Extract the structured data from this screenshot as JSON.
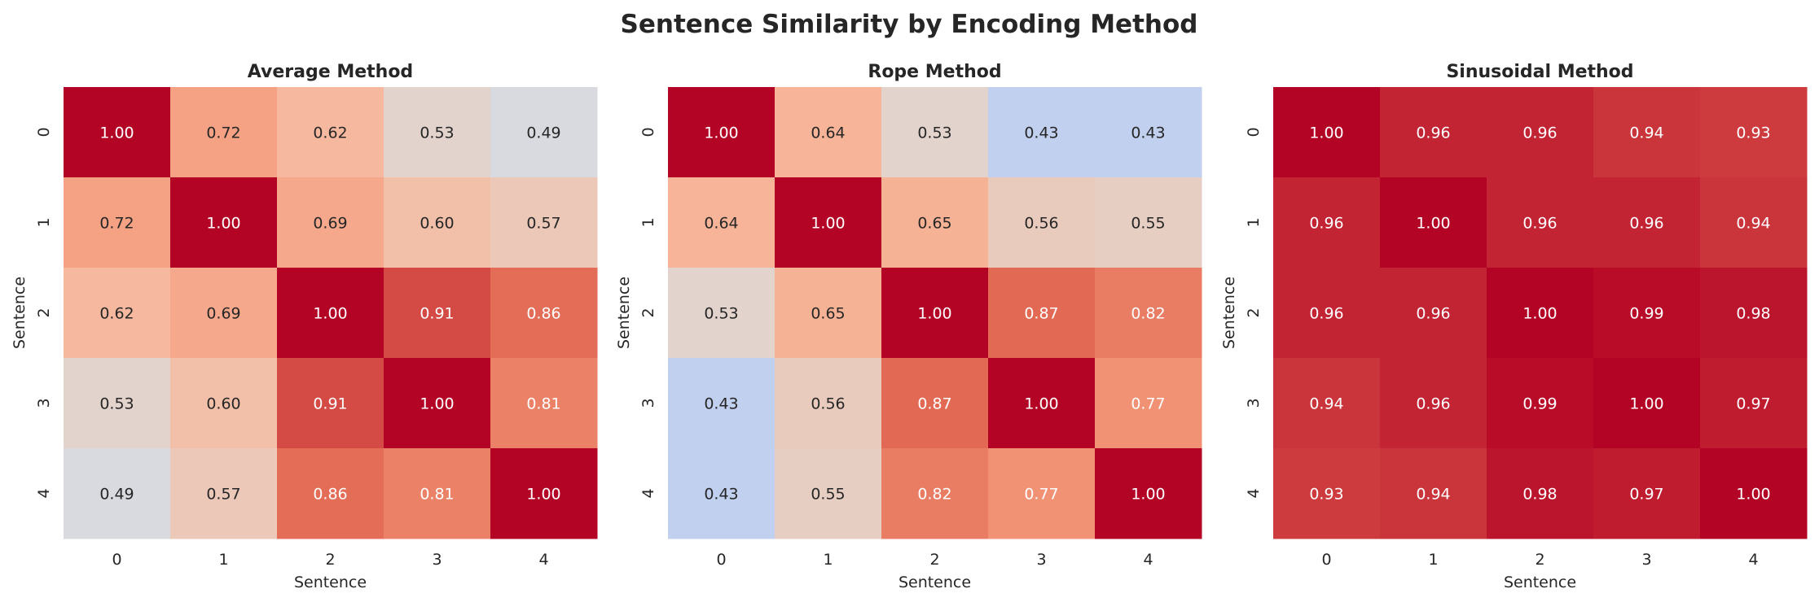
{
  "chart_data": {
    "title": "Sentence Similarity by Encoding Method",
    "colormap": "coolwarm",
    "vmin": 0,
    "vmax": 1,
    "charts": [
      {
        "type": "heatmap",
        "title": "Average Method",
        "xlabel": "Sentence",
        "ylabel": "Sentence",
        "x_ticks": [
          "0",
          "1",
          "2",
          "3",
          "4"
        ],
        "y_ticks": [
          "0",
          "1",
          "2",
          "3",
          "4"
        ],
        "values": [
          [
            1.0,
            0.72,
            0.62,
            0.53,
            0.49
          ],
          [
            0.72,
            1.0,
            0.69,
            0.6,
            0.57
          ],
          [
            0.62,
            0.69,
            1.0,
            0.91,
            0.86
          ],
          [
            0.53,
            0.6,
            0.91,
            1.0,
            0.81
          ],
          [
            0.49,
            0.57,
            0.86,
            0.81,
            1.0
          ]
        ]
      },
      {
        "type": "heatmap",
        "title": "Rope Method",
        "xlabel": "Sentence",
        "ylabel": "Sentence",
        "x_ticks": [
          "0",
          "1",
          "2",
          "3",
          "4"
        ],
        "y_ticks": [
          "0",
          "1",
          "2",
          "3",
          "4"
        ],
        "values": [
          [
            1.0,
            0.64,
            0.53,
            0.43,
            0.43
          ],
          [
            0.64,
            1.0,
            0.65,
            0.56,
            0.55
          ],
          [
            0.53,
            0.65,
            1.0,
            0.87,
            0.82
          ],
          [
            0.43,
            0.56,
            0.87,
            1.0,
            0.77
          ],
          [
            0.43,
            0.55,
            0.82,
            0.77,
            1.0
          ]
        ]
      },
      {
        "type": "heatmap",
        "title": "Sinusoidal Method",
        "xlabel": "Sentence",
        "ylabel": "Sentence",
        "x_ticks": [
          "0",
          "1",
          "2",
          "3",
          "4"
        ],
        "y_ticks": [
          "0",
          "1",
          "2",
          "3",
          "4"
        ],
        "values": [
          [
            1.0,
            0.96,
            0.96,
            0.94,
            0.93
          ],
          [
            0.96,
            1.0,
            0.96,
            0.96,
            0.94
          ],
          [
            0.96,
            0.96,
            1.0,
            0.99,
            0.98
          ],
          [
            0.94,
            0.96,
            0.99,
            1.0,
            0.97
          ],
          [
            0.93,
            0.94,
            0.98,
            0.97,
            1.0
          ]
        ]
      }
    ]
  }
}
